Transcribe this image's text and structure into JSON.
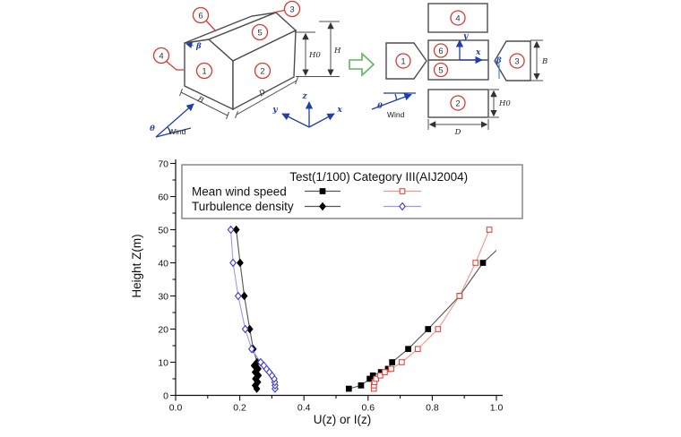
{
  "figure": {
    "diagram3d": {
      "face_labels": [
        "1",
        "2",
        "3",
        "4",
        "5",
        "6"
      ],
      "dim_B": "B",
      "dim_D": "D",
      "dim_H": "H",
      "dim_H0": "H0",
      "beta": "β",
      "theta": "θ",
      "wind": "Wind",
      "axis_x": "x",
      "axis_y": "y",
      "axis_z": "z"
    },
    "unfolded": {
      "face_labels": [
        "1",
        "2",
        "3",
        "4",
        "5",
        "6"
      ],
      "dim_B": "B",
      "dim_D": "D",
      "dim_H0": "H0",
      "beta": "β",
      "theta": "θ",
      "wind": "Wind",
      "axis_x": "x",
      "axis_y": "y"
    },
    "colors": {
      "outline_gray": "#4d4d4d",
      "label_red": "#d93a32",
      "annotation_blue": "#1e3fae",
      "arrow_green": "#5cb85c"
    }
  },
  "chart_data": {
    "type": "line",
    "xlabel": "U(z) or I(z)",
    "ylabel": "Height Z(m)",
    "xlim": [
      0.0,
      1.0
    ],
    "ylim": [
      0,
      70
    ],
    "xticks": [
      "0.0",
      "0.2",
      "0.4",
      "0.6",
      "0.8",
      "1.0"
    ],
    "yticks": [
      "0",
      "10",
      "20",
      "30",
      "40",
      "50",
      "60",
      "70"
    ],
    "grid": false,
    "legend_position": "top-inside-box",
    "legend": {
      "col_headers": [
        "Test(1/100)",
        "Category III(AIJ2004)"
      ],
      "row_labels": [
        "Mean wind speed",
        "Turbulence density"
      ]
    },
    "series": [
      {
        "name": "Mean wind speed - Test(1/100)",
        "line_color": "#555555",
        "marker": "square",
        "marker_stroke": "#000000",
        "marker_fill": "#000000",
        "z": [
          2,
          3,
          5,
          6,
          7,
          8,
          10,
          14,
          20,
          30,
          40,
          50
        ],
        "value": [
          0.54,
          0.578,
          0.605,
          0.615,
          0.64,
          0.662,
          0.675,
          0.725,
          0.787,
          0.885,
          0.958,
          1.07
        ]
      },
      {
        "name": "Mean wind speed - Category III(AIJ2004)",
        "line_color": "#f2968f",
        "marker": "square",
        "marker_stroke": "#e8473f",
        "marker_fill": "#ffffff",
        "z": [
          2,
          3,
          4,
          5,
          6,
          7,
          8,
          10,
          14,
          20,
          30,
          40,
          50
        ],
        "value": [
          0.618,
          0.618,
          0.62,
          0.625,
          0.638,
          0.652,
          0.672,
          0.705,
          0.755,
          0.818,
          0.885,
          0.935,
          0.978
        ]
      },
      {
        "name": "Turbulence density - Test(1/100)",
        "line_color": "#555555",
        "marker": "diamond",
        "marker_stroke": "#000000",
        "marker_fill": "#000000",
        "z": [
          2,
          3,
          4,
          5,
          6,
          7,
          8,
          9,
          10,
          14,
          20,
          30,
          40,
          50
        ],
        "value": [
          0.253,
          0.248,
          0.256,
          0.249,
          0.258,
          0.248,
          0.257,
          0.245,
          0.254,
          0.242,
          0.231,
          0.214,
          0.201,
          0.189
        ]
      },
      {
        "name": "Turbulence density - Category III(AIJ2004)",
        "line_color": "#9a9af5",
        "marker": "diamond",
        "marker_stroke": "#3c3cd9",
        "marker_fill": "#ffffff",
        "z": [
          2,
          3,
          4,
          5,
          6,
          7,
          8,
          9,
          10,
          14,
          20,
          30,
          40,
          50
        ],
        "value": [
          0.31,
          0.31,
          0.309,
          0.307,
          0.3,
          0.292,
          0.283,
          0.275,
          0.265,
          0.237,
          0.217,
          0.195,
          0.179,
          0.172
        ]
      }
    ]
  }
}
